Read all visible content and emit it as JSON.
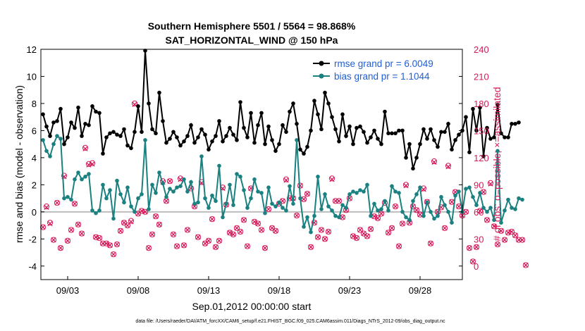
{
  "chart_data": {
    "type": "line",
    "title": "Southern Hemisphere 5501 / 5564 = 98.868%",
    "subtitle": "SAT_HORIZONTAL_WIND @ 150 hPa",
    "xlabel": "Sep.01,2012 00:00:00 start",
    "ylabel": "rmse and bias (model - observation)",
    "y2label": "# of obs: o=possible; ×=assimilated",
    "x_tick_labels": [
      "09/03",
      "09/08",
      "09/13",
      "09/18",
      "09/23",
      "09/28"
    ],
    "x_tick_days": [
      3,
      8,
      13,
      18,
      23,
      28
    ],
    "xlim": [
      1.1,
      31.0
    ],
    "ylim": [
      -5,
      12
    ],
    "y_ticks": [
      -4,
      -2,
      0,
      2,
      4,
      6,
      8,
      10,
      12
    ],
    "y2lim": [
      -15,
      240
    ],
    "y2_ticks": [
      0,
      30,
      60,
      90,
      120,
      150,
      180,
      210,
      240
    ],
    "grid": false,
    "legend_position": "top-right",
    "footer": "data file: /Users/raeder/DAI/ATM_forcXX/CAM6_setup/f.e21.FHIST_BGC.f09_025.CAM6assim.011/Diags_NTrS_2012-09/obs_diag_output.nc",
    "colors": {
      "rmse": "#000000",
      "bias": "#1a8080",
      "obs": "#d6195a",
      "zero_line": "#bdbdbd",
      "legend_text": "#1f5fd6"
    },
    "series": [
      {
        "name": "rmse grand pr = 6.0049",
        "color": "#000000",
        "values": [
          7.2,
          6.3,
          5.6,
          6.6,
          6.7,
          7.6,
          5.0,
          5.5,
          6.6,
          6.2,
          7.7,
          5.6,
          6.5,
          6.4,
          7.8,
          7.4,
          7.3,
          4.3,
          5.5,
          5.8,
          5.9,
          5.7,
          5.6,
          6.1,
          4.9,
          4.7,
          5.9,
          7.8,
          5.9,
          11.9,
          8.0,
          6.1,
          5.8,
          8.8,
          6.7,
          5.1,
          5.4,
          5.9,
          5.5,
          4.9,
          5.2,
          5.6,
          6.4,
          5.1,
          5.5,
          6.1,
          5.7,
          4.6,
          5.2,
          5.6,
          6.7,
          5.2,
          5.6,
          6.2,
          5.7,
          5.3,
          8.1,
          6.2,
          5.5,
          7.3,
          5.1,
          6.4,
          7.3,
          5.0,
          6.3,
          5.3,
          4.5,
          5.0,
          6.4,
          5.9,
          7.4,
          8.0,
          6.5,
          4.6,
          4.3,
          4.8,
          6.0,
          8.2,
          7.2,
          6.1,
          8.8,
          8.0,
          7.0,
          6.1,
          5.2,
          7.2,
          5.6,
          6.3,
          5.0,
          6.2,
          6.3,
          5.9,
          5.1,
          5.5,
          6.0,
          5.4,
          5.0,
          7.4,
          5.8,
          5.8,
          5.8,
          6.0,
          6.0,
          4.0,
          5.0,
          3.2,
          4.0,
          5.0,
          6.1,
          5.4,
          6.1,
          5.3,
          4.8,
          5.9,
          5.9,
          6.5,
          4.6,
          5.3,
          5.7,
          6.0,
          7.0,
          4.4,
          7.6,
          6.0,
          7.7,
          4.1,
          6.2,
          5.4,
          5.5,
          7.9,
          5.8,
          5.5,
          5.5,
          6.5,
          6.5,
          6.6
        ]
      },
      {
        "name": "bias grand pr = 1.1044",
        "color": "#1a8080",
        "values": [
          5.3,
          4.5,
          4.1,
          5.0,
          5.6,
          5.4,
          1.0,
          1.1,
          0.9,
          2.4,
          2.9,
          2.4,
          2.6,
          2.8,
          0.1,
          -0.1,
          0.1,
          2.0,
          1.0,
          1.6,
          -0.5,
          2.3,
          1.3,
          0.7,
          1.8,
          0.4,
          0.0,
          1.0,
          1.3,
          5.3,
          0.2,
          2.0,
          1.4,
          2.9,
          2.1,
          1.1,
          1.7,
          1.5,
          1.8,
          1.9,
          2.4,
          1.5,
          2.2,
          0.6,
          0.7,
          4.1,
          1.0,
          0.3,
          1.2,
          0.8,
          3.4,
          -0.4,
          0.6,
          2.0,
          0.5,
          2.8,
          2.6,
          1.6,
          0.3,
          1.0,
          2.4,
          1.5,
          1.4,
          -0.1,
          1.8,
          0.6,
          0.4,
          0.7,
          0.3,
          0.1,
          1.9,
          0.6,
          5.3,
          1.0,
          -1.1,
          -0.4,
          -1.5,
          -0.3,
          2.6,
          0.2,
          1.3,
          0.4,
          0.1,
          -0.3,
          -0.4,
          0.5,
          0.3,
          1.3,
          1.5,
          1.4,
          1.6,
          1.5,
          2.0,
          -0.3,
          0.6,
          0.1,
          0.2,
          0.8,
          0.1,
          1.9,
          1.5,
          1.4,
          0.0,
          -0.4,
          -0.6,
          0.8,
          1.3,
          1.8,
          -0.3,
          0.7,
          0.0,
          -0.5,
          -0.3,
          1.1,
          0.5,
          0.0,
          -0.8,
          1.2,
          1.5,
          0.0,
          1.7,
          1.8,
          1.1,
          0.5,
          1.4,
          0.3,
          0.0,
          0.3,
          -0.6,
          4.5,
          -0.8,
          0.1,
          0.9,
          0.3,
          0.2,
          1.0,
          0.9
        ]
      },
      {
        "name": "# of obs possible",
        "axis": "right",
        "color": "#d6195a",
        "values": [
          43,
          66,
          48,
          29,
          70,
          20,
          100,
          28,
          40,
          69,
          46,
          36,
          131,
          113,
          114,
          32,
          31,
          25,
          25,
          23,
          13,
          24,
          39,
          48,
          45,
          50,
          180,
          58,
          61,
          60,
          20,
          35,
          55,
          46,
          94,
          72,
          94,
          35,
          22,
          97,
          23,
          40,
          86,
          66,
          32,
          93,
          25,
          28,
          52,
          21,
          28,
          87,
          68,
          37,
          35,
          42,
          38,
          51,
          22,
          86,
          49,
          47,
          40,
          20,
          63,
          42,
          39,
          69,
          72,
          96,
          75,
          75,
          56,
          89,
          74,
          80,
          21,
          48,
          32,
          40,
          30,
          38,
          97,
          72,
          72,
          54,
          62,
          75,
          33,
          31,
          40,
          36,
          33,
          41,
          55,
          53,
          58,
          70,
          37,
          42,
          66,
          22,
          47,
          90,
          48,
          66,
          62,
          57,
          86,
          71,
          25,
          116,
          60,
          65,
          42,
          111,
          71,
          82,
          66,
          56,
          60,
          20,
          5,
          21,
          61,
          82,
          51,
          92,
          44,
          24,
          39,
          29,
          37,
          38,
          34,
          29,
          29,
          1
        ]
      },
      {
        "name": "# of obs assimilated",
        "axis": "right",
        "color": "#d6195a",
        "values": [
          43,
          65,
          47,
          29,
          70,
          20,
          99,
          28,
          40,
          69,
          46,
          36,
          130,
          112,
          113,
          32,
          31,
          25,
          25,
          23,
          13,
          24,
          39,
          48,
          45,
          49,
          179,
          58,
          61,
          60,
          20,
          35,
          55,
          46,
          93,
          72,
          94,
          35,
          22,
          96,
          23,
          40,
          86,
          66,
          32,
          92,
          25,
          28,
          52,
          21,
          28,
          86,
          68,
          37,
          35,
          42,
          38,
          51,
          22,
          86,
          49,
          47,
          40,
          20,
          63,
          42,
          39,
          69,
          72,
          95,
          75,
          75,
          56,
          89,
          74,
          80,
          21,
          48,
          32,
          40,
          30,
          38,
          96,
          72,
          72,
          54,
          62,
          75,
          33,
          31,
          40,
          36,
          33,
          41,
          55,
          53,
          58,
          70,
          37,
          42,
          66,
          22,
          47,
          89,
          48,
          66,
          62,
          57,
          85,
          71,
          25,
          115,
          60,
          65,
          42,
          110,
          71,
          82,
          66,
          56,
          60,
          20,
          5,
          21,
          61,
          82,
          51,
          91,
          44,
          24,
          39,
          29,
          37,
          38,
          34,
          29,
          29,
          1
        ]
      }
    ]
  }
}
